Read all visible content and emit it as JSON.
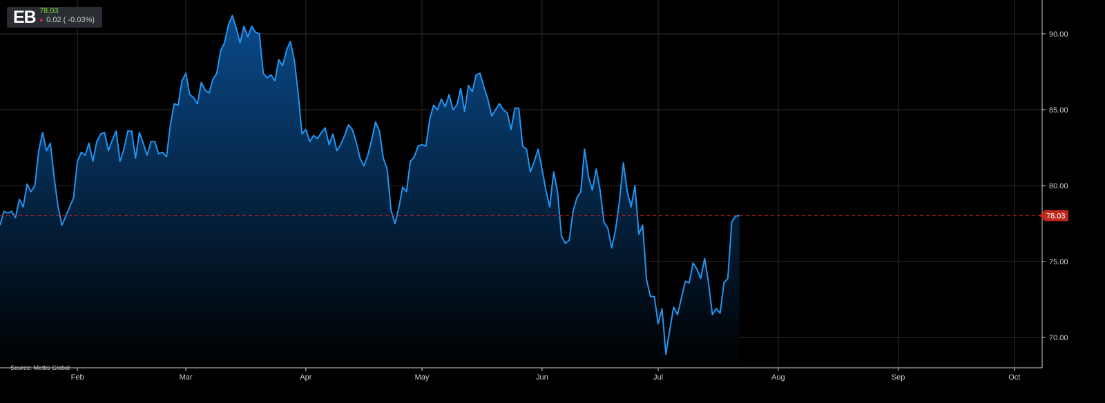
{
  "ticker": {
    "symbol": "EB",
    "price": "78.03",
    "change": "0.02",
    "change_pct": "( -0.03%)",
    "direction": "down",
    "arrow_icon": "down-triangle-icon",
    "up_color": "#7cdc3a",
    "down_color": "#e8273f"
  },
  "source": "Source: Mettis Global",
  "colors": {
    "line": "#2196f3",
    "fill_top": "#0a4a8a",
    "fill_bottom": "#000000",
    "grid": "#2e2e2e",
    "reference_line": "#b22222",
    "last_price_badge": "#c0291a"
  },
  "chart_data": {
    "type": "area",
    "title": "",
    "xlabel": "",
    "ylabel": "",
    "x_ticks": [
      {
        "label": "Feb",
        "day": 31
      },
      {
        "label": "Mar",
        "day": 59
      },
      {
        "label": "Apr",
        "day": 90
      },
      {
        "label": "May",
        "day": 120
      },
      {
        "label": "Jun",
        "day": 151
      },
      {
        "label": "Jul",
        "day": 181
      },
      {
        "label": "Aug",
        "day": 212
      },
      {
        "label": "Sep",
        "day": 243
      },
      {
        "label": "Oct",
        "day": 273
      }
    ],
    "y_ticks": [
      "70.00",
      "75.00",
      "80.00",
      "85.00",
      "90.00"
    ],
    "ylim": [
      68.2,
      92.2
    ],
    "xlim": [
      11,
      280
    ],
    "grid": true,
    "last_value": "78.03",
    "series": [
      {
        "values": [
          [
            11,
            77.4
          ],
          [
            12,
            78.3
          ],
          [
            13,
            78.2
          ],
          [
            14,
            78.3
          ],
          [
            15,
            77.9
          ],
          [
            16,
            79.1
          ],
          [
            17,
            78.6
          ],
          [
            18,
            80.1
          ],
          [
            19,
            79.6
          ],
          [
            20,
            80.0
          ],
          [
            21,
            82.3
          ],
          [
            22,
            83.5
          ],
          [
            23,
            82.3
          ],
          [
            24,
            82.8
          ],
          [
            25,
            80.5
          ],
          [
            26,
            78.6
          ],
          [
            27,
            77.4
          ],
          [
            28,
            78.0
          ],
          [
            29,
            78.6
          ],
          [
            30,
            79.2
          ],
          [
            31,
            81.6
          ],
          [
            32,
            82.2
          ],
          [
            33,
            82.0
          ],
          [
            34,
            82.8
          ],
          [
            35,
            81.6
          ],
          [
            36,
            82.9
          ],
          [
            37,
            83.4
          ],
          [
            38,
            83.5
          ],
          [
            39,
            82.3
          ],
          [
            40,
            83.0
          ],
          [
            41,
            83.6
          ],
          [
            42,
            81.6
          ],
          [
            43,
            82.4
          ],
          [
            44,
            83.6
          ],
          [
            45,
            83.6
          ],
          [
            46,
            81.8
          ],
          [
            47,
            83.5
          ],
          [
            48,
            82.8
          ],
          [
            49,
            82.0
          ],
          [
            50,
            82.9
          ],
          [
            51,
            82.9
          ],
          [
            52,
            82.1
          ],
          [
            53,
            82.2
          ],
          [
            54,
            81.9
          ],
          [
            55,
            84.0
          ],
          [
            56,
            85.4
          ],
          [
            57,
            85.3
          ],
          [
            58,
            86.9
          ],
          [
            59,
            87.4
          ],
          [
            60,
            86.0
          ],
          [
            61,
            85.8
          ],
          [
            62,
            85.4
          ],
          [
            63,
            86.8
          ],
          [
            64,
            86.3
          ],
          [
            65,
            86.1
          ],
          [
            66,
            87.0
          ],
          [
            67,
            87.4
          ],
          [
            68,
            88.9
          ],
          [
            69,
            89.4
          ],
          [
            70,
            90.6
          ],
          [
            71,
            91.2
          ],
          [
            72,
            90.4
          ],
          [
            73,
            89.4
          ],
          [
            74,
            90.5
          ],
          [
            75,
            89.8
          ],
          [
            76,
            90.5
          ],
          [
            77,
            90.1
          ],
          [
            78,
            90.0
          ],
          [
            79,
            87.4
          ],
          [
            80,
            87.1
          ],
          [
            81,
            87.3
          ],
          [
            82,
            86.9
          ],
          [
            83,
            88.3
          ],
          [
            84,
            87.9
          ],
          [
            85,
            88.9
          ],
          [
            86,
            89.5
          ],
          [
            87,
            88.3
          ],
          [
            88,
            86.1
          ],
          [
            89,
            83.4
          ],
          [
            90,
            83.7
          ],
          [
            91,
            82.9
          ],
          [
            92,
            83.3
          ],
          [
            93,
            83.1
          ],
          [
            94,
            83.5
          ],
          [
            95,
            83.8
          ],
          [
            96,
            82.7
          ],
          [
            97,
            83.4
          ],
          [
            98,
            82.3
          ],
          [
            99,
            82.7
          ],
          [
            100,
            83.3
          ],
          [
            101,
            84.0
          ],
          [
            102,
            83.7
          ],
          [
            103,
            82.9
          ],
          [
            104,
            81.8
          ],
          [
            105,
            81.3
          ],
          [
            106,
            82.0
          ],
          [
            107,
            83.0
          ],
          [
            108,
            84.2
          ],
          [
            109,
            83.6
          ],
          [
            110,
            81.8
          ],
          [
            111,
            81.1
          ],
          [
            112,
            78.4
          ],
          [
            113,
            77.5
          ],
          [
            114,
            78.5
          ],
          [
            115,
            79.9
          ],
          [
            116,
            79.6
          ],
          [
            117,
            81.6
          ],
          [
            118,
            81.9
          ],
          [
            119,
            82.6
          ],
          [
            120,
            82.7
          ],
          [
            121,
            82.6
          ],
          [
            122,
            84.4
          ],
          [
            123,
            85.3
          ],
          [
            124,
            85.0
          ],
          [
            125,
            85.7
          ],
          [
            126,
            85.2
          ],
          [
            127,
            86.0
          ],
          [
            128,
            85.0
          ],
          [
            129,
            85.3
          ],
          [
            130,
            86.4
          ],
          [
            131,
            84.9
          ],
          [
            132,
            86.6
          ],
          [
            133,
            86.2
          ],
          [
            134,
            87.3
          ],
          [
            135,
            87.4
          ],
          [
            136,
            86.5
          ],
          [
            137,
            85.7
          ],
          [
            138,
            84.6
          ],
          [
            139,
            85.0
          ],
          [
            140,
            85.4
          ],
          [
            141,
            85.0
          ],
          [
            142,
            84.8
          ],
          [
            143,
            83.7
          ],
          [
            144,
            85.1
          ],
          [
            145,
            85.1
          ],
          [
            146,
            82.6
          ],
          [
            147,
            82.4
          ],
          [
            148,
            80.9
          ],
          [
            149,
            81.6
          ],
          [
            150,
            82.4
          ],
          [
            151,
            81.1
          ],
          [
            152,
            79.7
          ],
          [
            153,
            78.6
          ],
          [
            154,
            80.9
          ],
          [
            155,
            79.6
          ],
          [
            156,
            76.7
          ],
          [
            157,
            76.2
          ],
          [
            158,
            76.4
          ],
          [
            159,
            78.3
          ],
          [
            160,
            79.2
          ],
          [
            161,
            79.6
          ],
          [
            162,
            82.4
          ],
          [
            163,
            80.6
          ],
          [
            164,
            79.7
          ],
          [
            165,
            81.1
          ],
          [
            166,
            79.7
          ],
          [
            167,
            77.6
          ],
          [
            168,
            77.2
          ],
          [
            169,
            75.9
          ],
          [
            170,
            77.1
          ],
          [
            171,
            79.0
          ],
          [
            172,
            81.5
          ],
          [
            173,
            79.6
          ],
          [
            174,
            78.6
          ],
          [
            175,
            80.0
          ],
          [
            176,
            76.8
          ],
          [
            177,
            77.4
          ],
          [
            178,
            73.8
          ],
          [
            179,
            72.7
          ],
          [
            180,
            72.7
          ],
          [
            181,
            70.9
          ],
          [
            182,
            71.9
          ],
          [
            183,
            68.9
          ],
          [
            184,
            70.5
          ],
          [
            185,
            72.0
          ],
          [
            186,
            71.5
          ],
          [
            187,
            72.6
          ],
          [
            188,
            73.7
          ],
          [
            189,
            73.6
          ],
          [
            190,
            74.9
          ],
          [
            191,
            74.5
          ],
          [
            192,
            73.9
          ],
          [
            193,
            75.2
          ],
          [
            194,
            73.6
          ],
          [
            195,
            71.5
          ],
          [
            196,
            71.9
          ],
          [
            197,
            71.6
          ],
          [
            198,
            73.6
          ],
          [
            199,
            73.9
          ],
          [
            200,
            77.6
          ],
          [
            201,
            78.0
          ],
          [
            202,
            78.03
          ]
        ]
      }
    ]
  }
}
